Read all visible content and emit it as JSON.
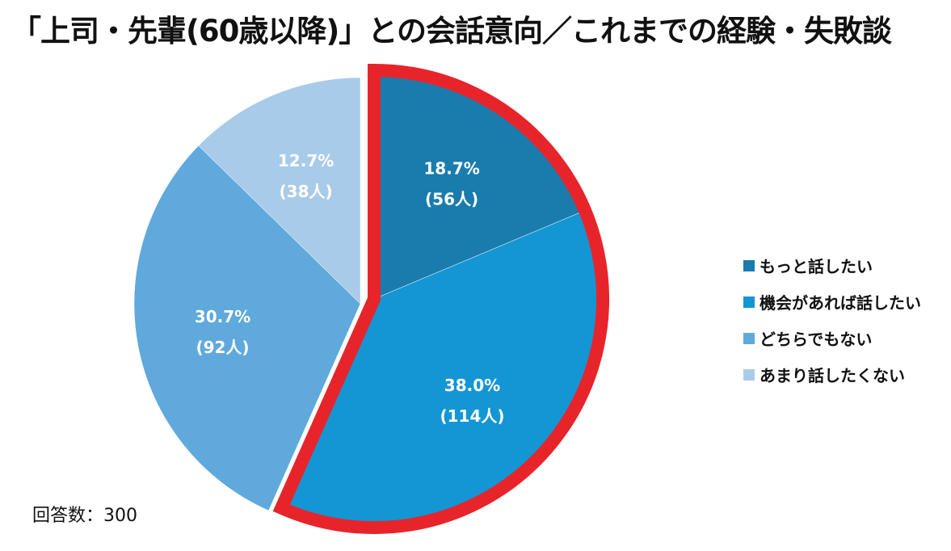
{
  "chart_data": {
    "type": "pie",
    "title": "「上司・先輩(60歳以降)」との会話意向／これまでの経験・失敗談",
    "slices": [
      {
        "name": "もっと話したい",
        "percent": 18.7,
        "count_label": "(56人)",
        "percent_label": "18.7%",
        "color": "#1a7cad",
        "highlighted": true
      },
      {
        "name": "機会があれば話したい",
        "percent": 38.0,
        "count_label": "(114人)",
        "percent_label": "38.0%",
        "color": "#1396d3",
        "highlighted": true
      },
      {
        "name": "どちらでもない",
        "percent": 30.7,
        "count_label": "(92人)",
        "percent_label": "30.7%",
        "color": "#5fa9dc",
        "highlighted": false
      },
      {
        "name": "あまり話したくない",
        "percent": 12.7,
        "count_label": "(38人)",
        "percent_label": "12.7%",
        "color": "#a9cbea",
        "highlighted": false
      }
    ],
    "legend_position": "right",
    "highlight_color": "#e8242b",
    "respondents_label": "回答数：300"
  }
}
